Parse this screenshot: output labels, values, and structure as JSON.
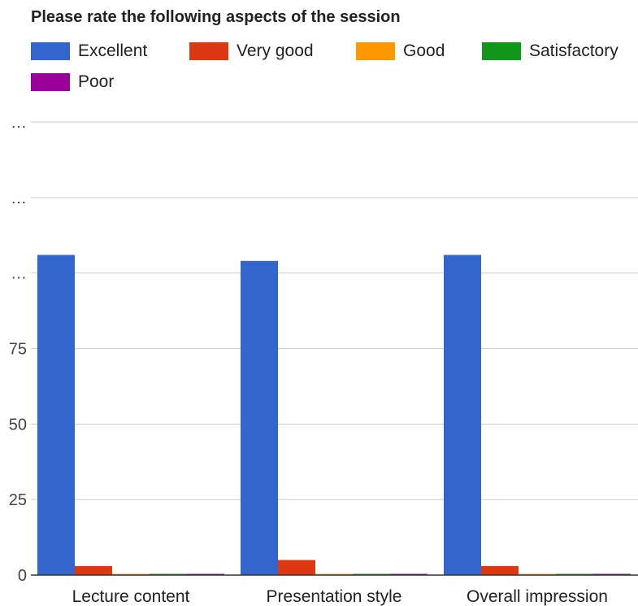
{
  "chart_data": {
    "type": "bar",
    "title": "Please rate the following aspects of the session",
    "categories": [
      "Lecture content",
      "Presentation style",
      "Overall impression"
    ],
    "series": [
      {
        "name": "Excellent",
        "color": "#3366cc",
        "values": [
          106,
          104,
          106
        ]
      },
      {
        "name": "Very good",
        "color": "#dc3912",
        "values": [
          3,
          5,
          3
        ]
      },
      {
        "name": "Good",
        "color": "#ff9900",
        "values": [
          0,
          0,
          0
        ]
      },
      {
        "name": "Satisfactory",
        "color": "#109618",
        "values": [
          0,
          0,
          0
        ]
      },
      {
        "name": "Poor",
        "color": "#990099",
        "values": [
          0,
          0,
          0
        ]
      }
    ],
    "yticks": [
      "0",
      "25",
      "50",
      "75",
      "…",
      "…",
      "…"
    ],
    "ylim": [
      0,
      150
    ],
    "grid": true,
    "legend": "top",
    "xlabel": "",
    "ylabel": ""
  }
}
